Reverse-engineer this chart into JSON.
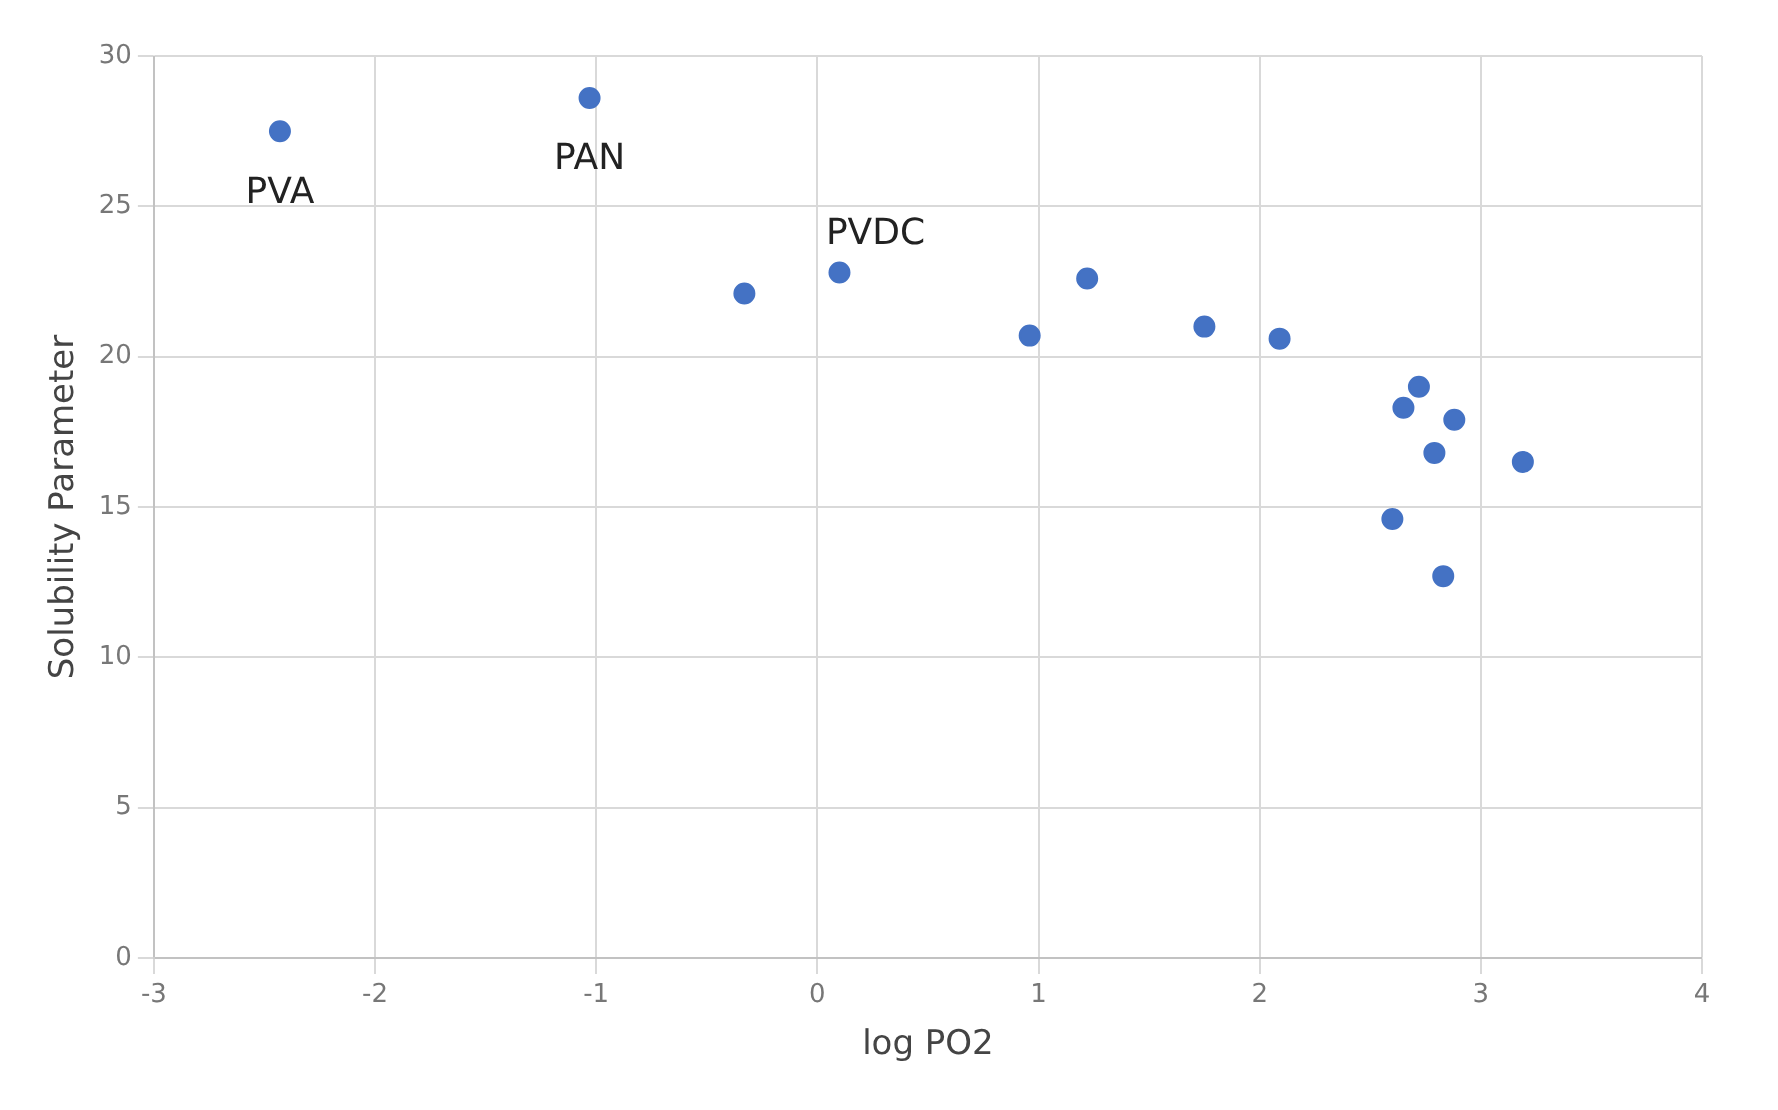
{
  "chart_data": {
    "type": "scatter",
    "xlabel": "log PO2",
    "ylabel": "Solubility Parameter",
    "x": [
      -2.43,
      -1.03,
      -0.33,
      0.1,
      0.96,
      1.22,
      1.75,
      2.09,
      2.72,
      2.65,
      2.88,
      2.79,
      3.19,
      2.6,
      2.83
    ],
    "values": [
      27.5,
      28.6,
      22.1,
      22.8,
      20.7,
      22.6,
      21.0,
      20.6,
      19.0,
      18.3,
      17.9,
      16.8,
      16.5,
      14.6,
      12.7
    ],
    "color": "#4472c4",
    "marker": "circle",
    "grid": true,
    "legend": false,
    "xlim": [
      -3,
      4
    ],
    "xticks": [
      -3,
      -2,
      -1,
      0,
      1,
      2,
      3,
      4
    ],
    "ylim": [
      0,
      30
    ],
    "yticks": [
      0,
      5,
      10,
      15,
      20,
      25,
      30
    ],
    "annotations": [
      {
        "text": "PVA",
        "x": -2.43,
        "y": 27.5
      },
      {
        "text": "PAN",
        "x": -1.03,
        "y": 28.6
      },
      {
        "text": "PVDC",
        "x": 0.1,
        "y": 22.8
      }
    ]
  }
}
